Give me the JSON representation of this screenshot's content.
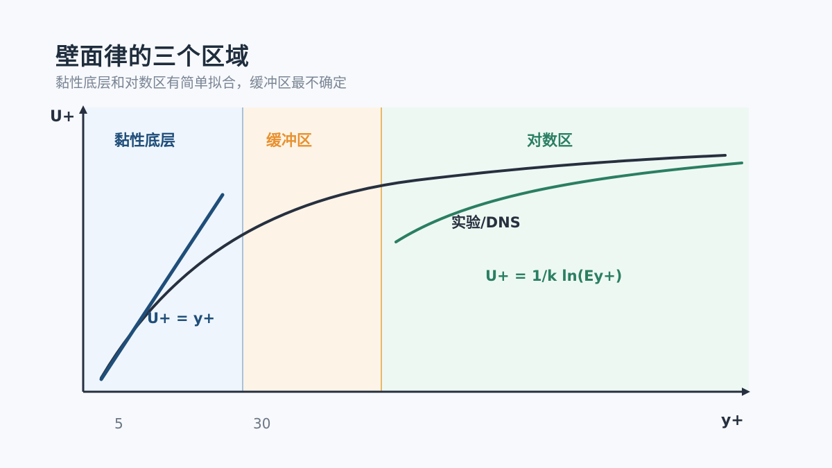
{
  "title": "壁面律的三个区域",
  "subtitle": "黏性底层和对数区有简单拟合，缓冲区最不确定",
  "colors": {
    "viscous": "#1f4e79",
    "buffer": "#e8912f",
    "log": "#2a7f62",
    "curve": "#27303f",
    "axis": "#27303f",
    "viscous_bg": "#eef5fd",
    "buffer_bg": "#fdf4e7",
    "log_bg": "#eef8f3"
  },
  "chart_data": {
    "type": "line",
    "title": "",
    "xlabel": "y+",
    "ylabel": "U+",
    "x_tick_labels": [
      "5",
      "30"
    ],
    "regions": [
      {
        "name": "黏性底层",
        "color": "#1f4e79"
      },
      {
        "name": "缓冲区",
        "color": "#e8912f"
      },
      {
        "name": "对数区",
        "color": "#2a7f62"
      }
    ],
    "series": [
      {
        "name": "实验/DNS",
        "color": "#27303f"
      },
      {
        "name": "U+ = y+",
        "color": "#1f4e79"
      },
      {
        "name": "U+ = 1/k ln(Ey+)",
        "color": "#2a7f62"
      }
    ],
    "grid": false,
    "legend": "inline labels"
  }
}
